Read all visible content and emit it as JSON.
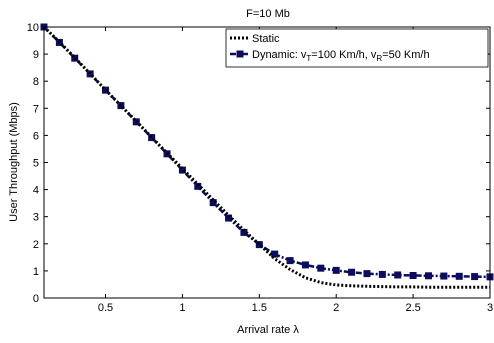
{
  "chart_data": {
    "type": "line",
    "title": "F=10 Mb",
    "xlabel": "Arrival rate λ",
    "ylabel": "User Throughput (Mbps)",
    "xlim": [
      0.1,
      3.0
    ],
    "ylim": [
      0,
      10
    ],
    "xticks": [
      0.5,
      1,
      1.5,
      2,
      2.5,
      3
    ],
    "xtick_labels": [
      "0.5",
      "1",
      "1.5",
      "2",
      "2.5",
      "3"
    ],
    "yticks": [
      0,
      1,
      2,
      3,
      4,
      5,
      6,
      7,
      8,
      9,
      10
    ],
    "ytick_labels": [
      "0",
      "1",
      "2",
      "3",
      "4",
      "5",
      "6",
      "7",
      "8",
      "9",
      "10"
    ],
    "grid": false,
    "legend_position": "top-right",
    "legend": {
      "static_label": "Static",
      "dynamic_prefix": "Dynamic: v",
      "dynamic_sub1": "T",
      "dynamic_mid": "=100 Km/h, v",
      "dynamic_sub2": "R",
      "dynamic_suffix": "=50 Km/h"
    },
    "colors": {
      "static": "#000000",
      "dynamic": "#0d0d5e"
    },
    "series": [
      {
        "name": "Static",
        "style": "dotted",
        "x": [
          0.1,
          0.2,
          0.3,
          0.4,
          0.5,
          0.6,
          0.7,
          0.8,
          0.9,
          1.0,
          1.1,
          1.2,
          1.3,
          1.4,
          1.5,
          1.6,
          1.7,
          1.8,
          1.9,
          2.0,
          2.1,
          2.2,
          2.3,
          2.4,
          2.5,
          2.6,
          2.7,
          2.8,
          2.9,
          3.0
        ],
        "y": [
          10.0,
          9.45,
          8.87,
          8.28,
          7.68,
          7.1,
          6.52,
          5.93,
          5.35,
          4.78,
          4.2,
          3.62,
          3.05,
          2.5,
          1.98,
          1.45,
          1.05,
          0.75,
          0.57,
          0.48,
          0.45,
          0.43,
          0.42,
          0.41,
          0.41,
          0.4,
          0.4,
          0.4,
          0.4,
          0.4
        ]
      },
      {
        "name": "Dynamic: vT=100 Km/h, vR=50 Km/h",
        "style": "dashdot-square",
        "x": [
          0.1,
          0.2,
          0.3,
          0.4,
          0.5,
          0.6,
          0.7,
          0.8,
          0.9,
          1.0,
          1.1,
          1.2,
          1.3,
          1.4,
          1.5,
          1.6,
          1.7,
          1.8,
          1.9,
          2.0,
          2.1,
          2.2,
          2.3,
          2.4,
          2.5,
          2.6,
          2.7,
          2.8,
          2.9,
          3.0
        ],
        "y": [
          10.0,
          9.43,
          8.85,
          8.27,
          7.67,
          7.1,
          6.5,
          5.92,
          5.32,
          4.72,
          4.12,
          3.52,
          2.95,
          2.42,
          1.97,
          1.62,
          1.38,
          1.22,
          1.1,
          1.02,
          0.95,
          0.9,
          0.87,
          0.85,
          0.83,
          0.82,
          0.81,
          0.8,
          0.79,
          0.78
        ]
      }
    ]
  }
}
